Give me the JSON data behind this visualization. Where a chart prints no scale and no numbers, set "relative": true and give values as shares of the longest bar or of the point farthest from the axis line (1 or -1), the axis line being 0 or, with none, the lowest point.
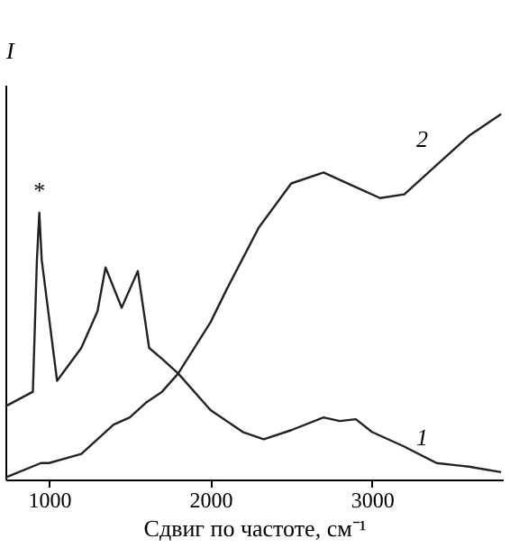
{
  "chart_data": {
    "type": "line",
    "relative": true,
    "xlabel": "Сдвиг по частоте, см⁻¹",
    "ylabel": "I",
    "xlim": [
      730,
      3810
    ],
    "xticks": [
      1000,
      2000,
      3000
    ],
    "grid": false,
    "marker": "none",
    "line_style": "solid",
    "annotations": [
      {
        "text": "*",
        "x": 940,
        "y": 0.73
      }
    ],
    "series": [
      {
        "name": "1",
        "color": "#222222",
        "x": [
          730,
          900,
          925,
          940,
          955,
          1050,
          1200,
          1300,
          1350,
          1450,
          1550,
          1620,
          1700,
          1800,
          2000,
          2200,
          2330,
          2500,
          2700,
          2800,
          2900,
          3000,
          3200,
          3400,
          3600,
          3800
        ],
        "values": [
          0.2,
          0.24,
          0.6,
          0.73,
          0.6,
          0.27,
          0.36,
          0.46,
          0.58,
          0.47,
          0.57,
          0.36,
          0.33,
          0.29,
          0.19,
          0.13,
          0.11,
          0.135,
          0.17,
          0.16,
          0.165,
          0.13,
          0.09,
          0.045,
          0.035,
          0.02
        ]
      },
      {
        "name": "2",
        "color": "#222222",
        "x": [
          730,
          950,
          1000,
          1200,
          1300,
          1400,
          1500,
          1600,
          1700,
          1800,
          2000,
          2100,
          2300,
          2500,
          2700,
          2900,
          3050,
          3200,
          3400,
          3600,
          3800
        ],
        "values": [
          0.005,
          0.045,
          0.045,
          0.07,
          0.11,
          0.15,
          0.17,
          0.21,
          0.24,
          0.29,
          0.43,
          0.52,
          0.69,
          0.81,
          0.84,
          0.8,
          0.77,
          0.78,
          0.86,
          0.94,
          1.0
        ]
      }
    ]
  }
}
